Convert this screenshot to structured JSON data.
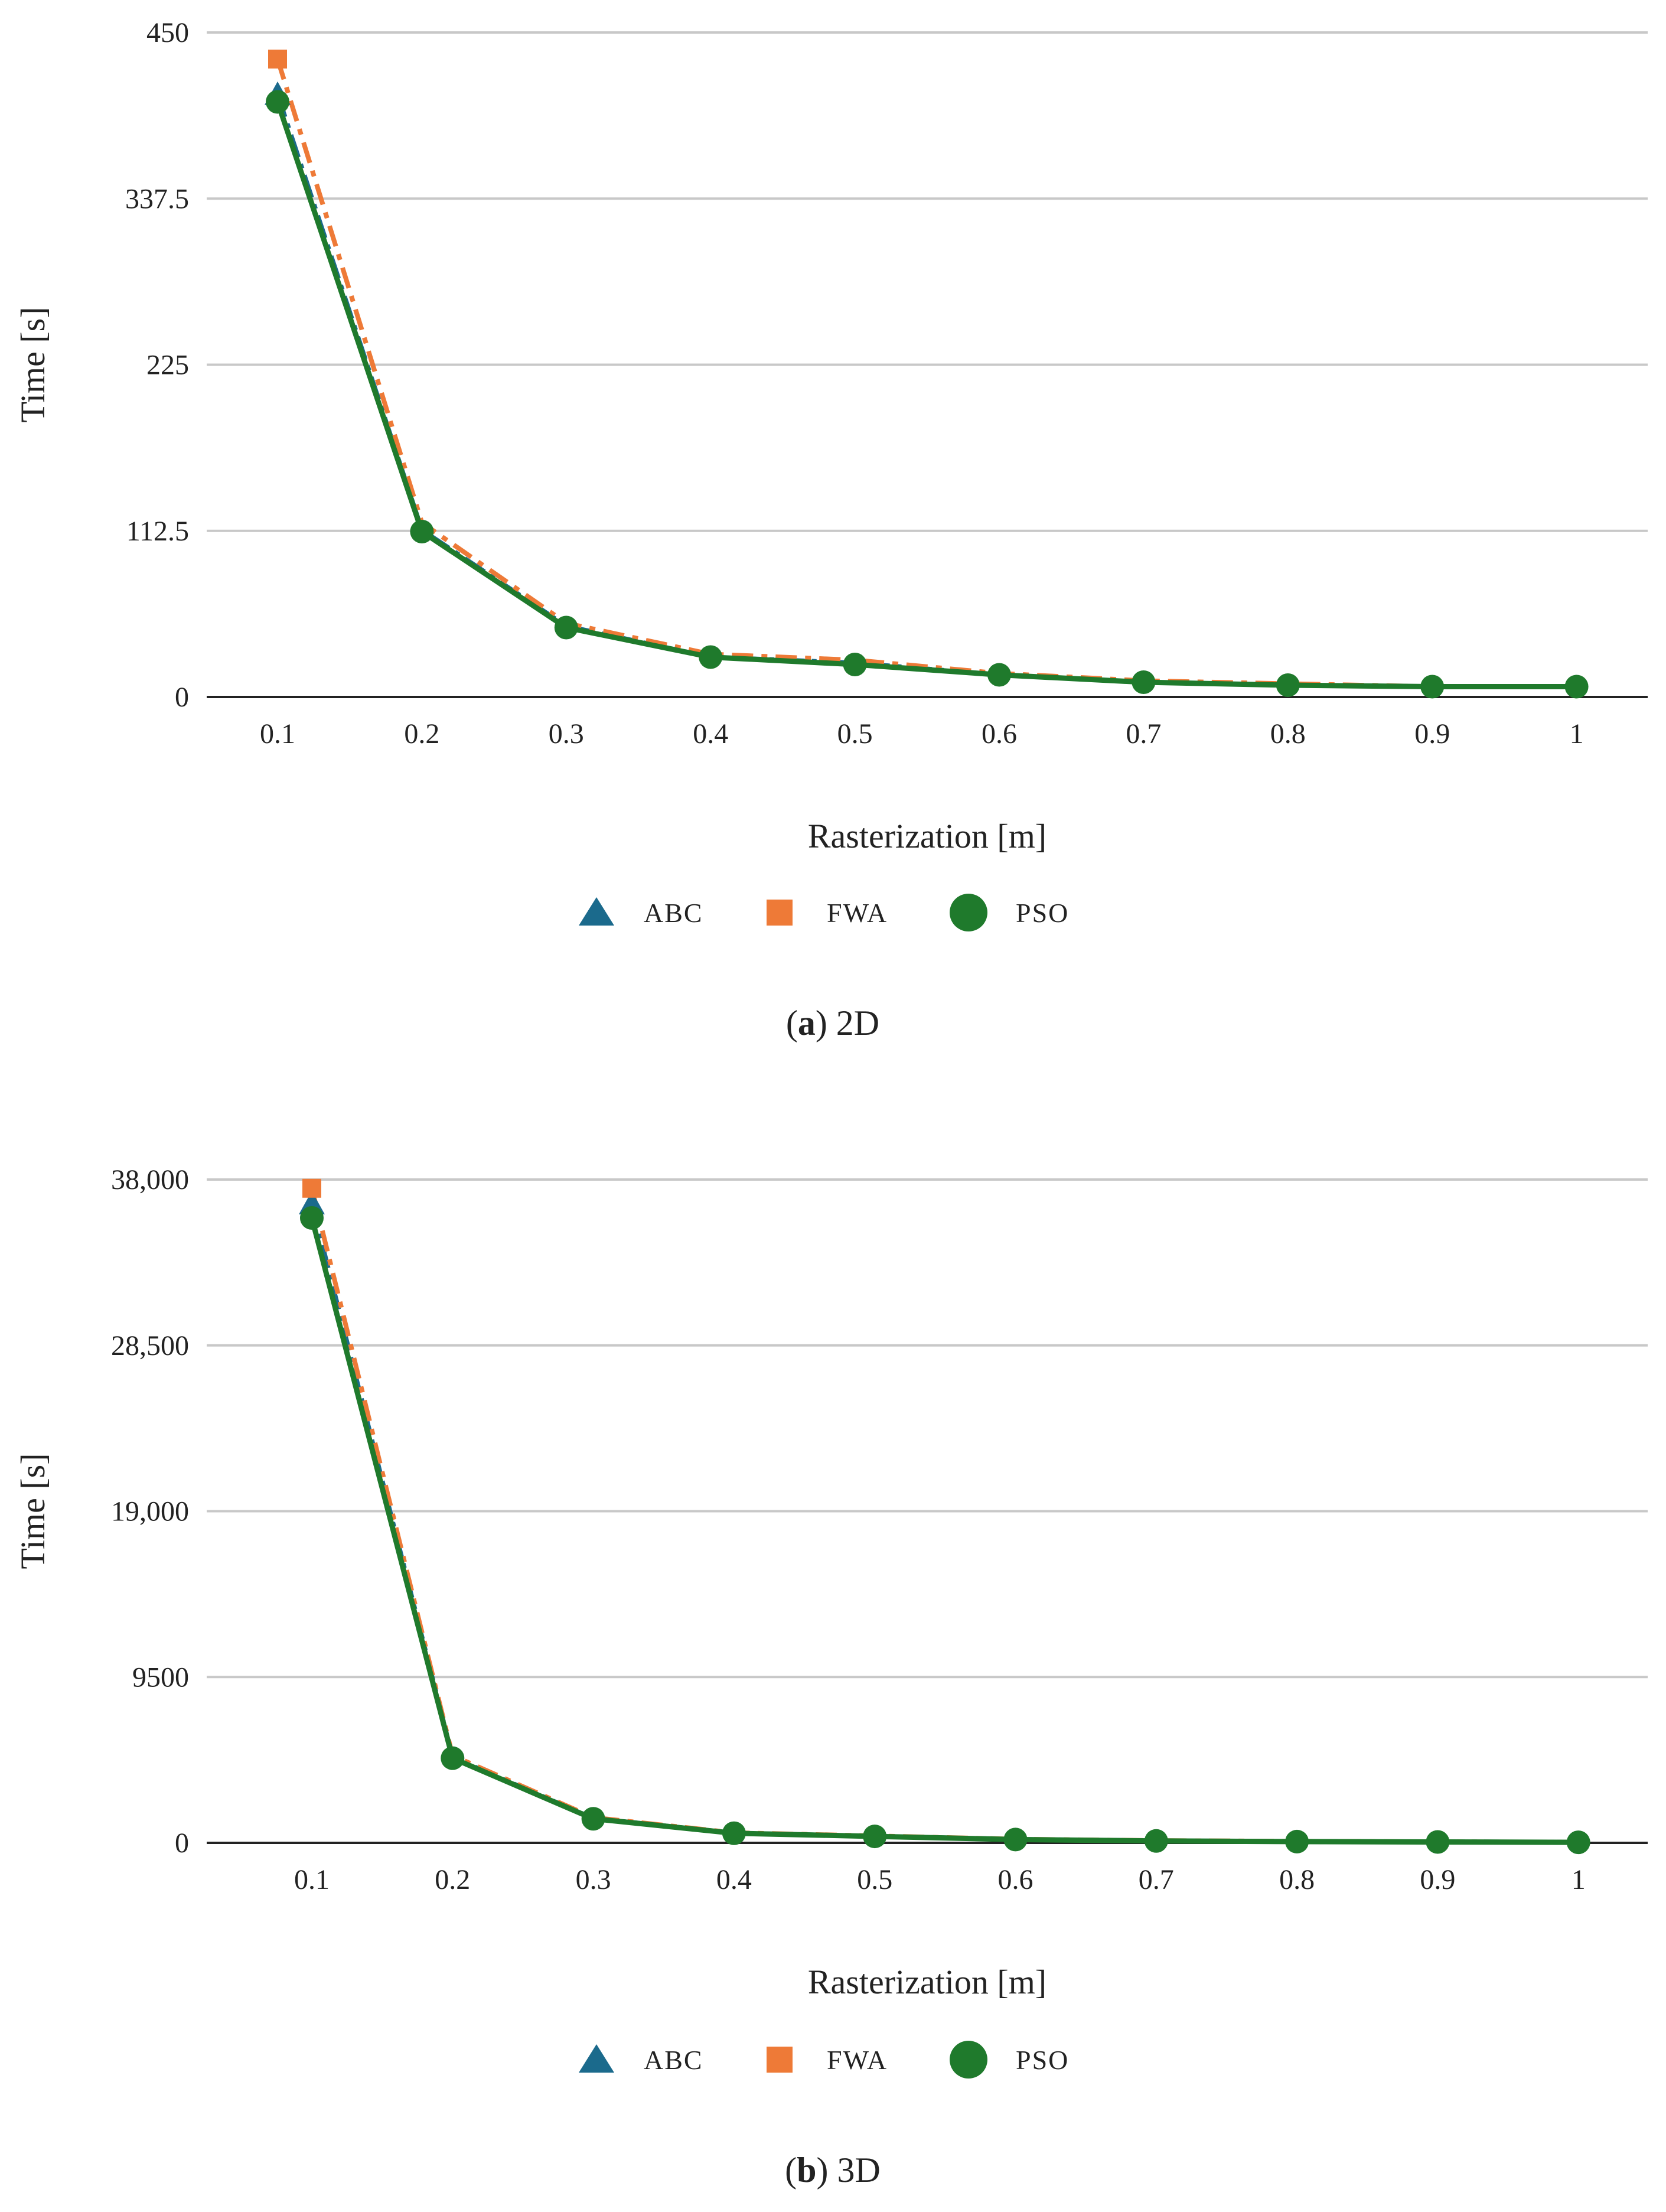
{
  "colors": {
    "ABC": "#1b6a8c",
    "FWA": "#ee7a37",
    "PSO": "#1f7a2c",
    "grid": "#c8c8c8",
    "axis": "#222222"
  },
  "chart_data": [
    {
      "type": "line",
      "panel_letter": "a",
      "caption": "2D",
      "xlabel": "Rasterization [m]",
      "ylabel": "Time [s]",
      "categories": [
        "0.1",
        "0.2",
        "0.3",
        "0.4",
        "0.5",
        "0.6",
        "0.7",
        "0.8",
        "0.9",
        "1"
      ],
      "ylim": [
        0,
        450
      ],
      "yticks": [
        0,
        112.5,
        225,
        337.5,
        450
      ],
      "ytick_labels": [
        "0",
        "112.5",
        "225",
        "337.5",
        "450"
      ],
      "grid": true,
      "legend_position": "bottom",
      "series": [
        {
          "name": "ABC",
          "marker": "triangle",
          "values": [
            408,
            113,
            48,
            27,
            23,
            15,
            10,
            8,
            7,
            7
          ]
        },
        {
          "name": "FWA",
          "marker": "square",
          "values": [
            432,
            118,
            50,
            29,
            25,
            16,
            11,
            9,
            7,
            7
          ]
        },
        {
          "name": "PSO",
          "marker": "circle",
          "values": [
            403,
            112,
            47,
            27,
            22,
            15,
            10,
            8,
            7,
            7
          ]
        }
      ]
    },
    {
      "type": "line",
      "panel_letter": "b",
      "caption": "3D",
      "xlabel": "Rasterization [m]",
      "ylabel": "Time [s]",
      "categories": [
        "0.1",
        "0.2",
        "0.3",
        "0.4",
        "0.5",
        "0.6",
        "0.7",
        "0.8",
        "0.9",
        "1"
      ],
      "ylim": [
        0,
        38000
      ],
      "yticks": [
        0,
        9500,
        19000,
        28500,
        38000
      ],
      "ytick_labels": [
        "0",
        "9500",
        "19,000",
        "28,500",
        "38,000"
      ],
      "grid": true,
      "legend_position": "bottom",
      "series": [
        {
          "name": "ABC",
          "marker": "triangle",
          "values": [
            36600,
            4900,
            1400,
            560,
            380,
            200,
            120,
            80,
            60,
            40
          ]
        },
        {
          "name": "FWA",
          "marker": "square",
          "values": [
            37500,
            5000,
            1450,
            580,
            400,
            210,
            130,
            90,
            60,
            40
          ]
        },
        {
          "name": "PSO",
          "marker": "circle",
          "values": [
            35800,
            4850,
            1380,
            550,
            370,
            190,
            110,
            70,
            50,
            30
          ]
        }
      ]
    }
  ]
}
